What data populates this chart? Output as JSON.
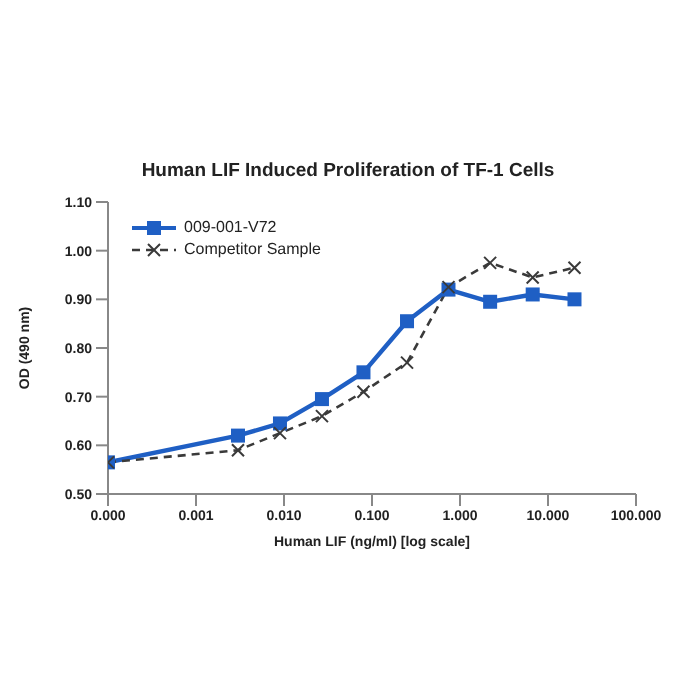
{
  "chart_data": {
    "type": "line",
    "title": "Human LIF Induced Proliferation of TF-1 Cells",
    "xlabel": "Human LIF (ng/ml) [log scale]",
    "ylabel": "OD (490 nm)",
    "x": [
      0.0001,
      0.003,
      0.009,
      0.027,
      0.08,
      0.25,
      0.74,
      2.2,
      6.7,
      20
    ],
    "series": [
      {
        "name": "009-001-V72",
        "color": "#1f5fc4",
        "marker": "square",
        "line_style": "solid",
        "values": [
          0.565,
          0.62,
          0.645,
          0.695,
          0.75,
          0.855,
          0.92,
          0.895,
          0.91,
          0.9
        ]
      },
      {
        "name": "Competitor Sample",
        "color": "#3a3a3a",
        "marker": "cross",
        "line_style": "dashed",
        "values": [
          0.565,
          0.59,
          0.625,
          0.66,
          0.71,
          0.77,
          0.925,
          0.975,
          0.945,
          0.965
        ]
      }
    ],
    "log": "x",
    "xlim": [
      0.0001,
      100
    ],
    "xticks": [
      {
        "value": 0.0001,
        "label": "0.000"
      },
      {
        "value": 0.001,
        "label": "0.001"
      },
      {
        "value": 0.01,
        "label": "0.010"
      },
      {
        "value": 0.1,
        "label": "0.100"
      },
      {
        "value": 1,
        "label": "1.000"
      },
      {
        "value": 10,
        "label": "10.000"
      },
      {
        "value": 100,
        "label": "100.000"
      }
    ],
    "ylim": [
      0.5,
      1.1
    ],
    "yticks": [
      {
        "value": 0.5,
        "label": "0.50"
      },
      {
        "value": 0.6,
        "label": "0.60"
      },
      {
        "value": 0.7,
        "label": "0.70"
      },
      {
        "value": 0.8,
        "label": "0.80"
      },
      {
        "value": 0.9,
        "label": "0.90"
      },
      {
        "value": 1.0,
        "label": "1.00"
      },
      {
        "value": 1.1,
        "label": "1.10"
      }
    ],
    "grid": false,
    "legend": "top left"
  }
}
